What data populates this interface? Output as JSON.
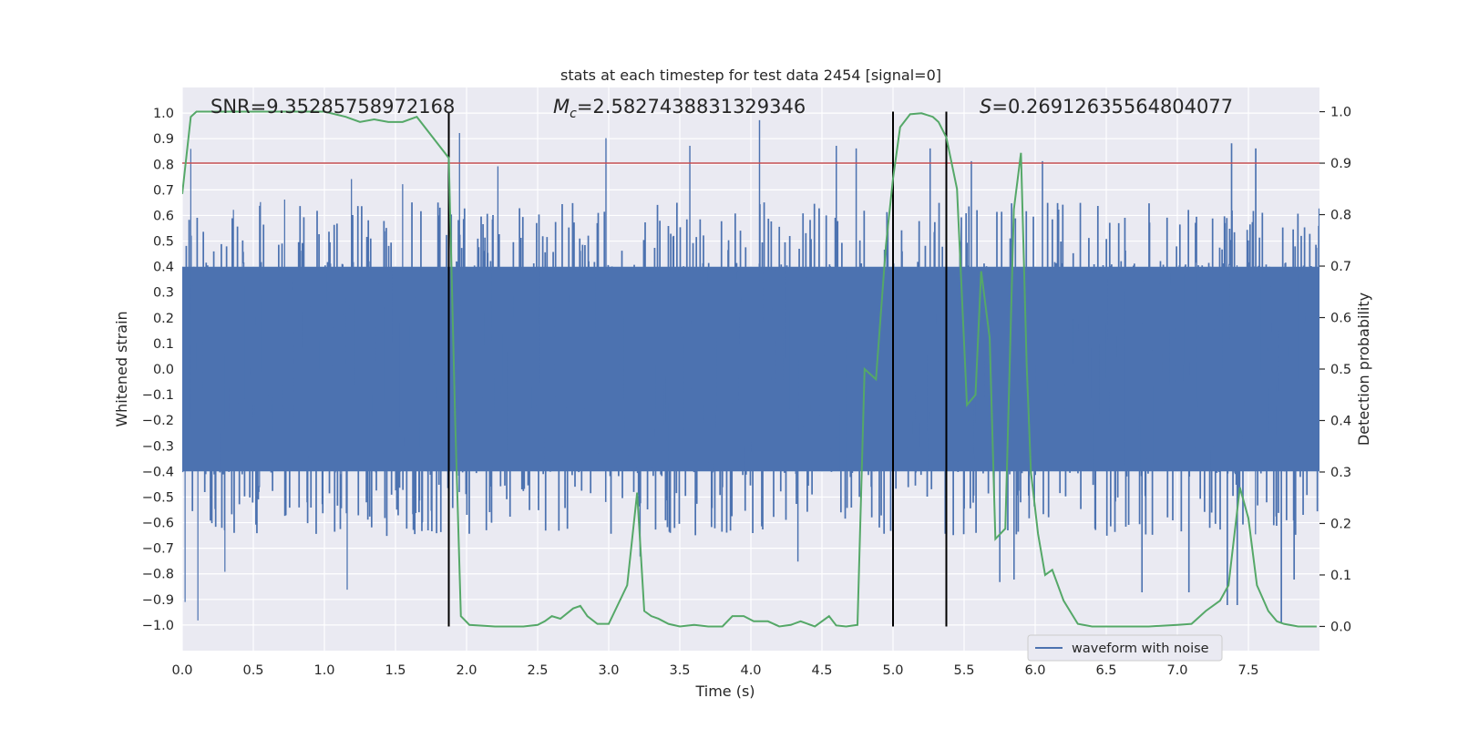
{
  "chart_data": {
    "type": "line",
    "title": "stats at each timestep for test data 2454 [signal=0]",
    "xlabel": "Time (s)",
    "ylabel": "Whitened strain",
    "y2label": "Detection probability",
    "xlim": [
      0,
      8.0
    ],
    "ylim": [
      -1.1,
      1.1
    ],
    "y2lim": [
      -0.047,
      1.047
    ],
    "xticks": [
      0.0,
      0.5,
      1.0,
      1.5,
      2.0,
      2.5,
      3.0,
      3.5,
      4.0,
      4.5,
      5.0,
      5.5,
      6.0,
      6.5,
      7.0,
      7.5
    ],
    "xtick_labels": [
      "0.0",
      "0.5",
      "1.0",
      "1.5",
      "2.0",
      "2.5",
      "3.0",
      "3.5",
      "4.0",
      "4.5",
      "5.0",
      "5.5",
      "6.0",
      "6.5",
      "7.0",
      "7.5"
    ],
    "yticks": [
      1.0,
      0.9,
      0.8,
      0.7,
      0.6,
      0.5,
      0.4,
      0.3,
      0.2,
      0.1,
      0.0,
      -0.1,
      -0.2,
      -0.3,
      -0.4,
      -0.5,
      -0.6,
      -0.7,
      -0.8,
      -0.9,
      -1.0
    ],
    "ytick_labels": [
      "1.0",
      "0.9",
      "0.8",
      "0.7",
      "0.6",
      "0.5",
      "0.4",
      "0.3",
      "0.2",
      "0.1",
      "0.0",
      "−0.1",
      "−0.2",
      "−0.3",
      "−0.4",
      "−0.5",
      "−0.6",
      "−0.7",
      "−0.8",
      "−0.9",
      "−1.0"
    ],
    "y2ticks": [
      1.0,
      0.9,
      0.8,
      0.7,
      0.6,
      0.5,
      0.4,
      0.3,
      0.2,
      0.1,
      0.0
    ],
    "y2tick_labels": [
      "1.0",
      "0.9",
      "0.8",
      "0.7",
      "0.6",
      "0.5",
      "0.4",
      "0.3",
      "0.2",
      "0.1",
      "0.0"
    ],
    "threshold": 0.9,
    "vertical_lines": [
      1.875,
      5.0,
      5.375
    ],
    "annotations": {
      "snr": "SNR=9.35285758972168",
      "mc_label": "M",
      "mc_sub": "c",
      "mc_value": "=2.5827438831329346",
      "s_label": "S",
      "s_value": "=0.26912635564804077"
    },
    "legend": {
      "label": "waveform with noise",
      "placement": "lower-right"
    },
    "noise_waveform": {
      "name": "waveform with noise",
      "envelope_hi": 0.4,
      "envelope_lo": -0.4,
      "peaks": [
        [
          0.06,
          0.86
        ],
        [
          0.36,
          0.62
        ],
        [
          0.55,
          0.65
        ],
        [
          0.72,
          0.66
        ],
        [
          1.19,
          0.74
        ],
        [
          1.55,
          0.72
        ],
        [
          1.95,
          0.92
        ],
        [
          2.22,
          0.79
        ],
        [
          2.98,
          0.9
        ],
        [
          3.57,
          0.87
        ],
        [
          4.06,
          0.97
        ],
        [
          4.6,
          0.87
        ],
        [
          4.74,
          0.86
        ],
        [
          5.26,
          0.86
        ],
        [
          5.55,
          0.81
        ],
        [
          6.05,
          0.81
        ],
        [
          7.38,
          0.88
        ],
        [
          7.55,
          0.86
        ]
      ],
      "troughs": [
        [
          0.02,
          -0.91
        ],
        [
          0.11,
          -0.98
        ],
        [
          0.3,
          -0.79
        ],
        [
          1.16,
          -0.86
        ],
        [
          3.22,
          -0.73
        ],
        [
          4.33,
          -0.75
        ],
        [
          5.75,
          -0.83
        ],
        [
          5.85,
          -0.82
        ],
        [
          6.75,
          -0.87
        ],
        [
          7.08,
          -0.87
        ],
        [
          7.35,
          -0.92
        ],
        [
          7.42,
          -0.92
        ],
        [
          7.73,
          -0.99
        ],
        [
          7.82,
          -0.82
        ]
      ]
    },
    "probability": {
      "name": "Detection probability",
      "x": [
        0.0,
        0.06,
        0.1,
        0.2,
        0.4,
        0.6,
        0.8,
        1.0,
        1.15,
        1.25,
        1.35,
        1.45,
        1.55,
        1.65,
        1.875,
        1.92,
        1.96,
        2.02,
        2.2,
        2.4,
        2.5,
        2.55,
        2.6,
        2.66,
        2.75,
        2.8,
        2.85,
        2.92,
        3.0,
        3.13,
        3.2,
        3.25,
        3.3,
        3.35,
        3.42,
        3.5,
        3.6,
        3.7,
        3.8,
        3.87,
        3.95,
        4.02,
        4.08,
        4.12,
        4.2,
        4.28,
        4.35,
        4.45,
        4.55,
        4.6,
        4.67,
        4.75,
        4.8,
        4.88,
        4.95,
        5.0,
        5.05,
        5.12,
        5.2,
        5.28,
        5.32,
        5.375,
        5.45,
        5.52,
        5.58,
        5.62,
        5.68,
        5.72,
        5.79,
        5.85,
        5.9,
        5.94,
        5.97,
        6.02,
        6.07,
        6.12,
        6.2,
        6.3,
        6.4,
        6.6,
        6.8,
        7.0,
        7.1,
        7.2,
        7.3,
        7.36,
        7.44,
        7.5,
        7.56,
        7.64,
        7.7,
        7.75,
        7.85,
        7.98
      ],
      "y": [
        0.84,
        0.99,
        1.0,
        1.0,
        1.0,
        1.0,
        1.0,
        1.0,
        0.99,
        0.98,
        0.985,
        0.98,
        0.98,
        0.99,
        0.91,
        0.4,
        0.02,
        0.003,
        0.0,
        0.0,
        0.003,
        0.01,
        0.02,
        0.015,
        0.035,
        0.04,
        0.02,
        0.005,
        0.005,
        0.08,
        0.26,
        0.03,
        0.02,
        0.015,
        0.005,
        0.0,
        0.003,
        0.0,
        0.0,
        0.02,
        0.02,
        0.01,
        0.01,
        0.01,
        0.0,
        0.003,
        0.01,
        0.0,
        0.02,
        0.002,
        0.0,
        0.003,
        0.5,
        0.48,
        0.74,
        0.87,
        0.97,
        0.995,
        0.997,
        0.99,
        0.98,
        0.95,
        0.85,
        0.43,
        0.45,
        0.69,
        0.56,
        0.17,
        0.19,
        0.81,
        0.92,
        0.51,
        0.3,
        0.18,
        0.1,
        0.11,
        0.05,
        0.005,
        0.0,
        0.0,
        0.0,
        0.003,
        0.005,
        0.03,
        0.05,
        0.08,
        0.27,
        0.21,
        0.08,
        0.03,
        0.01,
        0.005,
        0.0,
        0.0
      ]
    }
  }
}
